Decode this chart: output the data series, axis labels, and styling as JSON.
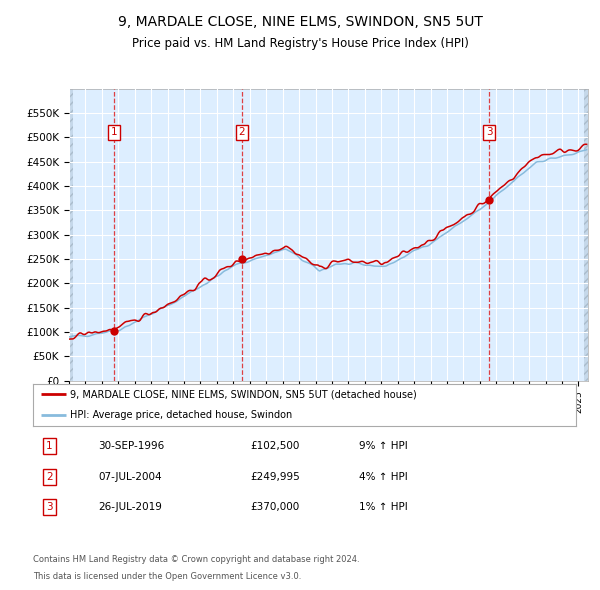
{
  "title": "9, MARDALE CLOSE, NINE ELMS, SWINDON, SN5 5UT",
  "subtitle": "Price paid vs. HM Land Registry's House Price Index (HPI)",
  "sale_dates": [
    "1996-09-30",
    "2004-07-07",
    "2019-07-26"
  ],
  "sale_prices": [
    102500,
    249995,
    370000
  ],
  "sale_labels": [
    "1",
    "2",
    "3"
  ],
  "legend_line1": "9, MARDALE CLOSE, NINE ELMS, SWINDON, SN5 5UT (detached house)",
  "legend_line2": "HPI: Average price, detached house, Swindon",
  "table_rows": [
    [
      "1",
      "30-SEP-1996",
      "£102,500",
      "9% ↑ HPI"
    ],
    [
      "2",
      "07-JUL-2004",
      "£249,995",
      "4% ↑ HPI"
    ],
    [
      "3",
      "26-JUL-2019",
      "£370,000",
      "1% ↑ HPI"
    ]
  ],
  "footer1": "Contains HM Land Registry data © Crown copyright and database right 2024.",
  "footer2": "This data is licensed under the Open Government Licence v3.0.",
  "ylim": [
    0,
    600000
  ],
  "yticks": [
    0,
    50000,
    100000,
    150000,
    200000,
    250000,
    300000,
    350000,
    400000,
    450000,
    500000,
    550000
  ],
  "ytick_labels": [
    "£0",
    "£50K",
    "£100K",
    "£150K",
    "£200K",
    "£250K",
    "£300K",
    "£350K",
    "£400K",
    "£450K",
    "£500K",
    "£550K"
  ],
  "plot_bg_color": "#ddeeff",
  "red_line_color": "#cc0000",
  "blue_line_color": "#88bbdd",
  "vline_color": "#dd2222",
  "marker_color": "#cc0000",
  "box_edge_color": "#cc0000",
  "grid_color": "#ffffff"
}
